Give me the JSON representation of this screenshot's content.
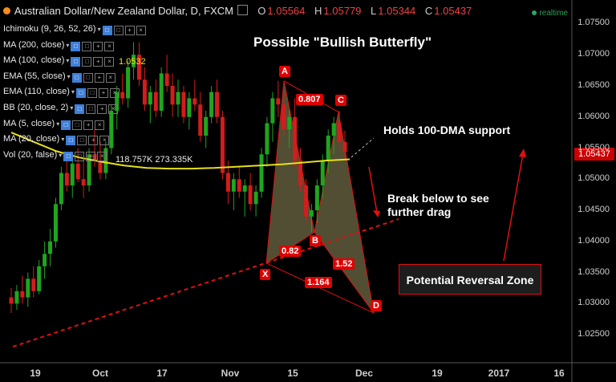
{
  "header": {
    "symbol_title": "Australian Dollar/New Zealand Dollar, D, FXCM",
    "o_label": "O",
    "o_value": "1.05564",
    "h_label": "H",
    "h_value": "1.05779",
    "l_label": "L",
    "l_value": "1.05344",
    "c_label": "C",
    "c_value": "1.05437",
    "realtime": "realtime"
  },
  "indicators": [
    "Ichimoku (9, 26, 52, 26)",
    "MA (200, close)",
    "MA (100, close)",
    "EMA (55, close)",
    "EMA (110, close)",
    "BB (20, close, 2)",
    "MA (5, close)",
    "MA (20, close)",
    "Vol (20, false)"
  ],
  "ma100_value": "1.0532",
  "vol_values": "118.757K 273.335K",
  "colors": {
    "up": "#1fa51f",
    "down": "#d41c1c",
    "ma100": "#e6e018",
    "pattern_fill": "#5a5638",
    "pattern_line": "#e01010",
    "background": "#000000"
  },
  "chart_data": {
    "type": "candlestick",
    "title": "Possible \"Bullish Butterfly\"",
    "y_ticks": [
      "1.07500",
      "1.07000",
      "1.06500",
      "1.06000",
      "1.05500",
      "1.05000",
      "1.04500",
      "1.04000",
      "1.03500",
      "1.03000",
      "1.02500"
    ],
    "y_tick_values": [
      1.075,
      1.07,
      1.065,
      1.06,
      1.055,
      1.05,
      1.045,
      1.04,
      1.035,
      1.03,
      1.025
    ],
    "ylim": [
      1.0205,
      1.0788
    ],
    "current_price": "1.05437",
    "x_ticks": [
      "19",
      "Oct",
      "17",
      "Nov",
      "15",
      "Dec",
      "19",
      "2017",
      "16"
    ],
    "candles": [
      [
        1.031,
        1.0325,
        1.0285,
        1.03
      ],
      [
        1.03,
        1.033,
        1.029,
        1.032
      ],
      [
        1.032,
        1.0345,
        1.03,
        1.031
      ],
      [
        1.031,
        1.035,
        1.0295,
        1.034
      ],
      [
        1.034,
        1.036,
        1.031,
        1.032
      ],
      [
        1.032,
        1.037,
        1.0315,
        1.036
      ],
      [
        1.036,
        1.04,
        1.034,
        1.038
      ],
      [
        1.038,
        1.042,
        1.036,
        1.04
      ],
      [
        1.04,
        1.047,
        1.039,
        1.046
      ],
      [
        1.046,
        1.052,
        1.045,
        1.051
      ],
      [
        1.051,
        1.053,
        1.048,
        1.049
      ],
      [
        1.049,
        1.054,
        1.047,
        1.0525
      ],
      [
        1.0525,
        1.055,
        1.0495,
        1.05
      ],
      [
        1.05,
        1.053,
        1.047,
        1.049
      ],
      [
        1.049,
        1.055,
        1.048,
        1.054
      ],
      [
        1.054,
        1.058,
        1.052,
        1.053
      ],
      [
        1.053,
        1.056,
        1.05,
        1.051
      ],
      [
        1.051,
        1.056,
        1.05,
        1.055
      ],
      [
        1.055,
        1.062,
        1.054,
        1.061
      ],
      [
        1.061,
        1.065,
        1.058,
        1.064
      ],
      [
        1.064,
        1.067,
        1.062,
        1.063
      ],
      [
        1.063,
        1.069,
        1.0615,
        1.068
      ],
      [
        1.068,
        1.072,
        1.066,
        1.07
      ],
      [
        1.07,
        1.072,
        1.065,
        1.066
      ],
      [
        1.066,
        1.068,
        1.061,
        1.062
      ],
      [
        1.062,
        1.065,
        1.059,
        1.064
      ],
      [
        1.064,
        1.066,
        1.06,
        1.061
      ],
      [
        1.061,
        1.068,
        1.06,
        1.067
      ],
      [
        1.067,
        1.07,
        1.064,
        1.065
      ],
      [
        1.065,
        1.067,
        1.06,
        1.062
      ],
      [
        1.062,
        1.066,
        1.06,
        1.064
      ],
      [
        1.064,
        1.065,
        1.059,
        1.06
      ],
      [
        1.06,
        1.064,
        1.058,
        1.063
      ],
      [
        1.063,
        1.066,
        1.061,
        1.062
      ],
      [
        1.062,
        1.064,
        1.056,
        1.057
      ],
      [
        1.057,
        1.061,
        1.055,
        1.06
      ],
      [
        1.06,
        1.065,
        1.059,
        1.064
      ],
      [
        1.064,
        1.066,
        1.059,
        1.06
      ],
      [
        1.06,
        1.061,
        1.05,
        1.051
      ],
      [
        1.051,
        1.053,
        1.046,
        1.048
      ],
      [
        1.048,
        1.051,
        1.045,
        1.05
      ],
      [
        1.05,
        1.052,
        1.047,
        1.048
      ],
      [
        1.048,
        1.05,
        1.044,
        1.049
      ],
      [
        1.049,
        1.051,
        1.045,
        1.046
      ],
      [
        1.046,
        1.049,
        1.044,
        1.048
      ],
      [
        1.048,
        1.055,
        1.047,
        1.054
      ],
      [
        1.054,
        1.06,
        1.052,
        1.059
      ],
      [
        1.059,
        1.064,
        1.056,
        1.063
      ],
      [
        1.063,
        1.0658,
        1.06,
        1.062
      ],
      [
        1.062,
        1.064,
        1.057,
        1.058
      ],
      [
        1.058,
        1.061,
        1.055,
        1.06
      ],
      [
        1.06,
        1.063,
        1.052,
        1.053
      ],
      [
        1.053,
        1.055,
        1.048,
        1.049
      ],
      [
        1.049,
        1.05,
        1.043,
        1.044
      ],
      [
        1.044,
        1.046,
        1.0415,
        1.045
      ],
      [
        1.045,
        1.05,
        1.043,
        1.049
      ],
      [
        1.049,
        1.054,
        1.047,
        1.053
      ],
      [
        1.053,
        1.058,
        1.051,
        1.057
      ],
      [
        1.057,
        1.06,
        1.054,
        1.059
      ],
      [
        1.059,
        1.061,
        1.055,
        1.056
      ],
      [
        1.056,
        1.0578,
        1.0534,
        1.0544
      ]
    ],
    "ma100": [
      1.0575,
      1.056,
      1.0545,
      1.0535,
      1.0528,
      1.0522,
      1.0518,
      1.0517,
      1.0517,
      1.0518,
      1.052,
      1.0522,
      1.0524,
      1.0527,
      1.053,
      1.0532
    ],
    "pattern": {
      "points": {
        "X": 1.0365,
        "A": 1.0658,
        "B": 1.0415,
        "C": 1.0608,
        "D": 1.0285
      },
      "ratios": [
        "0.807",
        "0.82",
        "1.52",
        "1.164"
      ]
    },
    "annotations": {
      "dma_note": "Holds 100-DMA support",
      "break_note": "Break below to see further drag",
      "prz": "Potential Reversal Zone"
    }
  }
}
